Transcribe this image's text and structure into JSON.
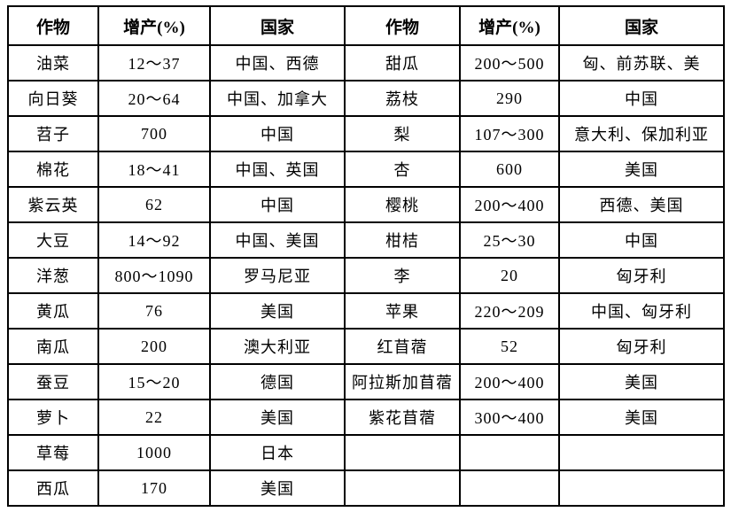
{
  "table": {
    "headers": [
      "作物",
      "增产(%)",
      "国家",
      "作物",
      "增产(%)",
      "国家"
    ],
    "rows": [
      [
        "油菜",
        "12～37",
        "中国、西德",
        "甜瓜",
        "200～500",
        "匈、前苏联、美"
      ],
      [
        "向日葵",
        "20～64",
        "中国、加拿大",
        "荔枝",
        "290",
        "中国"
      ],
      [
        "苕子",
        "700",
        "中国",
        "梨",
        "107～300",
        "意大利、保加利亚"
      ],
      [
        "棉花",
        "18～41",
        "中国、英国",
        "杏",
        "600",
        "美国"
      ],
      [
        "紫云英",
        "62",
        "中国",
        "樱桃",
        "200～400",
        "西德、美国"
      ],
      [
        "大豆",
        "14～92",
        "中国、美国",
        "柑桔",
        "25～30",
        "中国"
      ],
      [
        "洋葱",
        "800～1090",
        "罗马尼亚",
        "李",
        "20",
        "匈牙利"
      ],
      [
        "黄瓜",
        "76",
        "美国",
        "苹果",
        "220～209",
        "中国、匈牙利"
      ],
      [
        "南瓜",
        "200",
        "澳大利亚",
        "红苜蓿",
        "52",
        "匈牙利"
      ],
      [
        "蚕豆",
        "15～20",
        "德国",
        "阿拉斯加苜蓿",
        "200～400",
        "美国"
      ],
      [
        "萝卜",
        "22",
        "美国",
        "紫花苜蓿",
        "300～400",
        "美国"
      ],
      [
        "草莓",
        "1000",
        "日本",
        "",
        "",
        ""
      ],
      [
        "西瓜",
        "170",
        "美国",
        "",
        "",
        ""
      ]
    ],
    "colors": {
      "border": "#000000",
      "text": "#000000",
      "background": "#ffffff"
    }
  }
}
